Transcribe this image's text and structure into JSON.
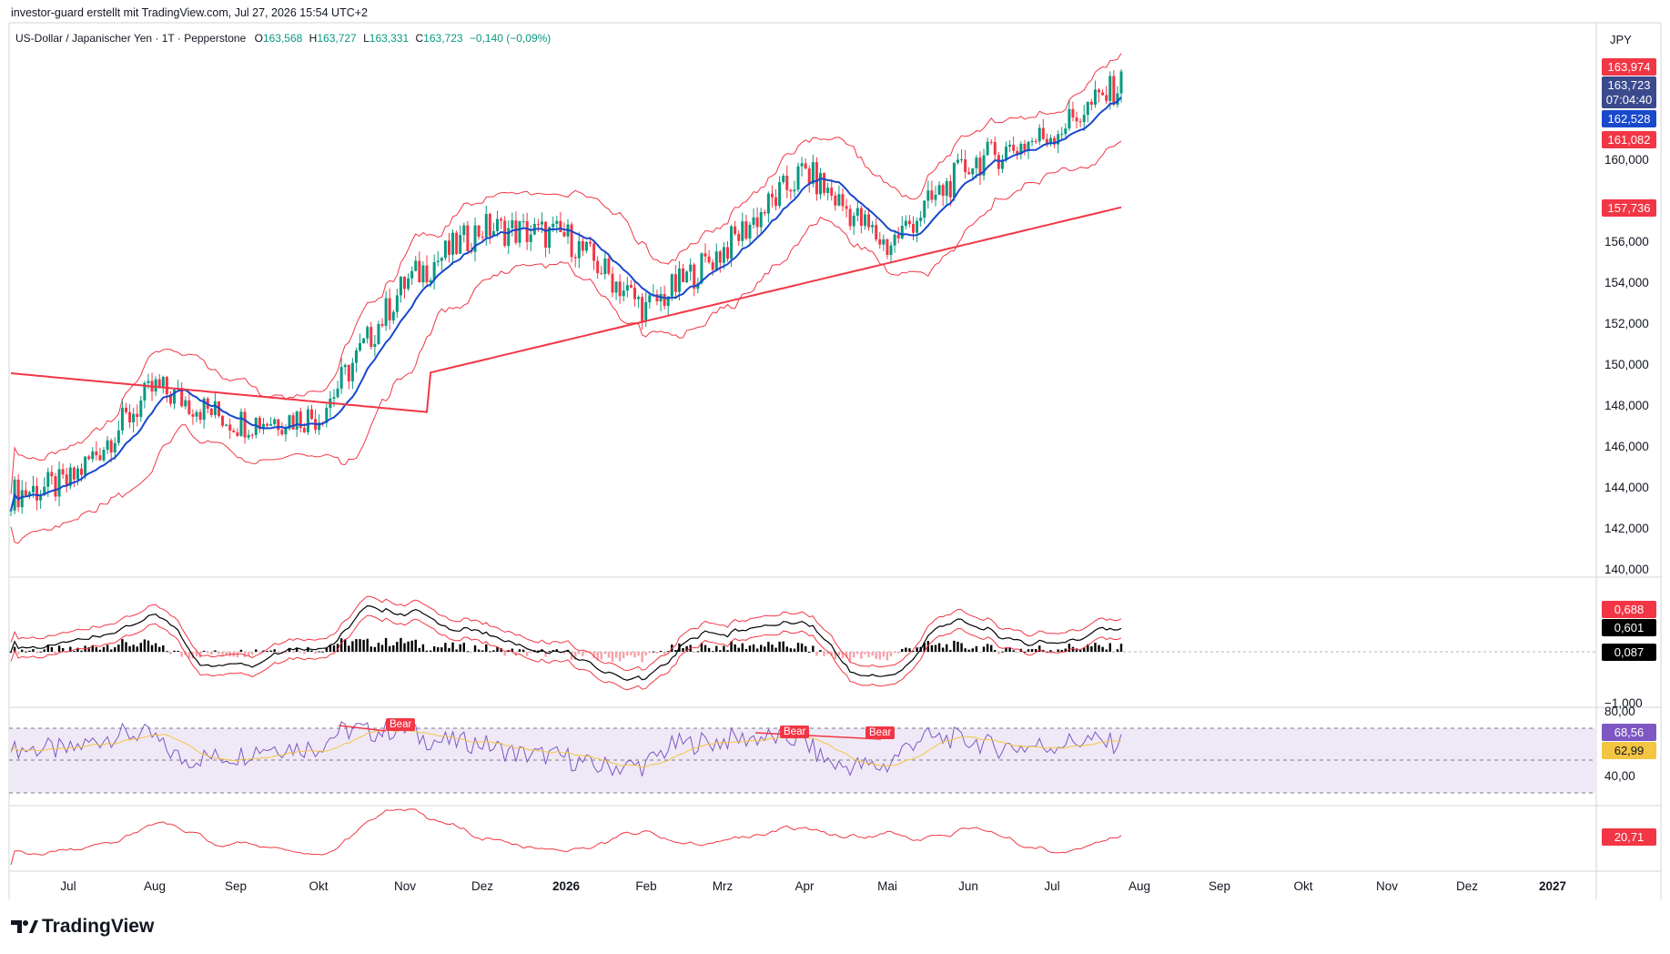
{
  "header": {
    "credit": "investor-guard erstellt mit TradingView.com, Jul 27, 2026 15:54 UTC+2",
    "symbol": "US-Dollar / Japanischer Yen · 1T · Pepperstone",
    "o_label": "O",
    "o_value": "163,568",
    "h_label": "H",
    "h_value": "163,727",
    "l_label": "L",
    "l_value": "163,331",
    "c_label": "C",
    "c_value": "163,723",
    "change": "−0,140 (−0,09%)"
  },
  "currency": "JPY",
  "brand": "TradingView",
  "colors": {
    "up": "#089981",
    "down": "#f23645",
    "bands": "#f23645",
    "ma_blue": "#1848cc",
    "ma_red": "#f23645",
    "rsi": "#7e57c2",
    "rsi_ma": "#f4c542",
    "rsi_bg": "#efe9f7"
  },
  "price_axis": {
    "ticks": [
      "160,000",
      "156,000",
      "154,000",
      "152,000",
      "150,000",
      "148,000",
      "146,000",
      "144,000",
      "142,000",
      "140,000"
    ],
    "badges": [
      {
        "text": "163,974",
        "color": "#f23645"
      },
      {
        "text": "163,723",
        "color": "#3a4a8c"
      },
      {
        "text": "07:04:40",
        "color": "#3a4a8c"
      },
      {
        "text": "162,528",
        "color": "#1848cc"
      },
      {
        "text": "161,082",
        "color": "#f23645"
      },
      {
        "text": "157,736",
        "color": "#f23645"
      }
    ]
  },
  "macd_axis": {
    "badges": [
      {
        "text": "0,688",
        "color": "#f23645"
      },
      {
        "text": "0,601",
        "color": "#000000"
      },
      {
        "text": "0,087",
        "color": "#000000"
      }
    ],
    "bottom_tick": "−1,000"
  },
  "rsi_axis": {
    "ticks": [
      "80,00",
      "40,00"
    ],
    "badges": [
      {
        "text": "68,56",
        "color": "#7e57c2"
      },
      {
        "text": "62,99",
        "color": "#f4c542"
      }
    ],
    "bear_labels": [
      "Bear",
      "Bear",
      "Bear"
    ]
  },
  "osc_axis": {
    "badges": [
      {
        "text": "20,71",
        "color": "#f23645"
      }
    ]
  },
  "time_axis": [
    "Jul",
    "Aug",
    "Sep",
    "Okt",
    "Nov",
    "Dez",
    "2026",
    "Feb",
    "Mrz",
    "Apr",
    "Mai",
    "Jun",
    "Jul",
    "Aug",
    "Sep",
    "Okt",
    "Nov",
    "Dez",
    "2027"
  ],
  "chart_data": {
    "type": "line",
    "title": "US-Dollar / Japanischer Yen · 1T · Pepperstone",
    "x_is_monthly_anchor": true,
    "series": [
      {
        "name": "Close",
        "x": [
          "Jul",
          "Aug",
          "Sep",
          "Okt",
          "Nov",
          "Dez",
          "2026",
          "Feb",
          "Mrz",
          "Apr",
          "Mai",
          "Jun",
          "Jul",
          "Jul"
        ],
        "values": [
          144.2,
          148.9,
          147.2,
          147.5,
          154.0,
          156.7,
          156.3,
          152.7,
          155.6,
          159.5,
          155.8,
          159.8,
          161.3,
          163.723
        ]
      }
    ],
    "ylim": [
      140.0,
      165.0
    ],
    "grid": false
  }
}
